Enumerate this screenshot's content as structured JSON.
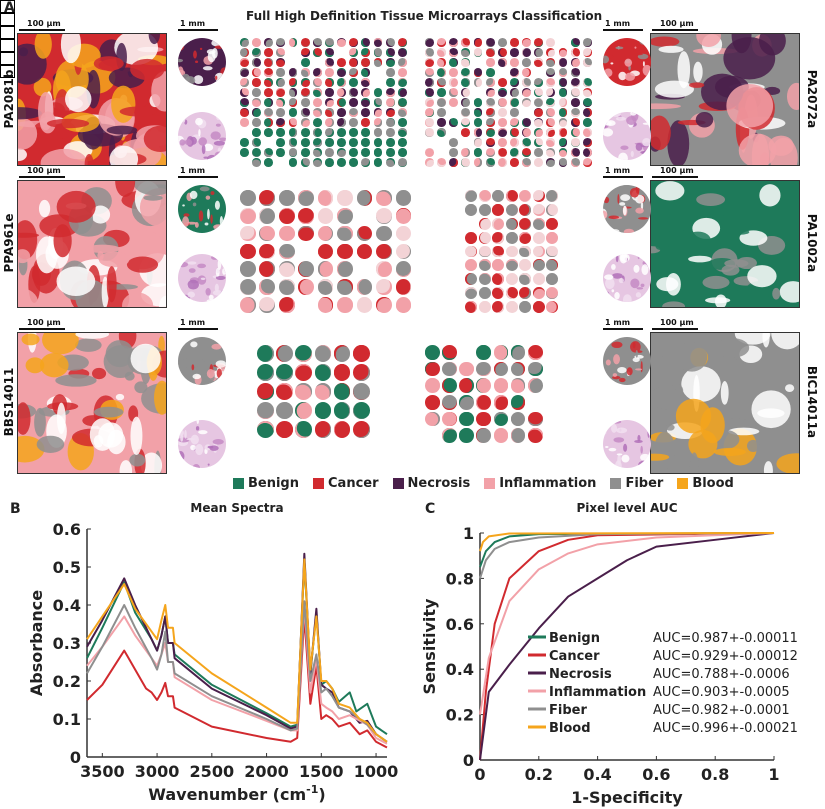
{
  "panelA": {
    "letter": "A",
    "title": "Full High Definition Tissue Microarrays Classification",
    "scale_big": "100 µm",
    "scale_small": "1 mm",
    "samples": [
      "PA2081b",
      "PA2072a",
      "PPA961e",
      "PA1002a",
      "BBS14011",
      "BIC14011a"
    ]
  },
  "legend": [
    {
      "name": "Benign",
      "color": "#1e7a5a"
    },
    {
      "name": "Cancer",
      "color": "#d12a2f"
    },
    {
      "name": "Necrosis",
      "color": "#4a1f4b"
    },
    {
      "name": "Inflammation",
      "color": "#f2a1a8"
    },
    {
      "name": "Fiber",
      "color": "#8f8f8f"
    },
    {
      "name": "Blood",
      "color": "#f5a51c"
    }
  ],
  "chart_data": [
    {
      "type": "line",
      "letter": "B",
      "title": "Mean Spectra",
      "xlabel": "Wavenumber (cm",
      "xlabel_sup": "-1",
      "xlabel_end": ")",
      "ylabel": "Absorbance",
      "xlim": [
        3640,
        900
      ],
      "ylim": [
        0,
        0.6
      ],
      "xticks": [
        3500,
        3000,
        2500,
        2000,
        1500,
        1000
      ],
      "yticks": [
        0,
        0.1,
        0.2,
        0.3,
        0.4,
        0.5,
        0.6
      ],
      "series": [
        {
          "class": "Benign",
          "points": [
            [
              3640,
              0.26
            ],
            [
              3500,
              0.34
            ],
            [
              3300,
              0.46
            ],
            [
              3200,
              0.38
            ],
            [
              3050,
              0.31
            ],
            [
              3000,
              0.28
            ],
            [
              2960,
              0.32
            ],
            [
              2925,
              0.37
            ],
            [
              2900,
              0.3
            ],
            [
              2855,
              0.3
            ],
            [
              2840,
              0.27
            ],
            [
              2500,
              0.19
            ],
            [
              2000,
              0.115
            ],
            [
              1780,
              0.08
            ],
            [
              1720,
              0.085
            ],
            [
              1655,
              0.52
            ],
            [
              1600,
              0.22
            ],
            [
              1545,
              0.38
            ],
            [
              1500,
              0.19
            ],
            [
              1455,
              0.2
            ],
            [
              1400,
              0.18
            ],
            [
              1340,
              0.145
            ],
            [
              1240,
              0.17
            ],
            [
              1180,
              0.12
            ],
            [
              1080,
              0.14
            ],
            [
              1000,
              0.08
            ],
            [
              900,
              0.06
            ]
          ]
        },
        {
          "class": "Cancer",
          "points": [
            [
              3640,
              0.15
            ],
            [
              3500,
              0.19
            ],
            [
              3300,
              0.28
            ],
            [
              3200,
              0.23
            ],
            [
              3100,
              0.18
            ],
            [
              3050,
              0.17
            ],
            [
              3000,
              0.15
            ],
            [
              2960,
              0.17
            ],
            [
              2925,
              0.195
            ],
            [
              2900,
              0.16
            ],
            [
              2855,
              0.16
            ],
            [
              2840,
              0.13
            ],
            [
              2500,
              0.08
            ],
            [
              2000,
              0.05
            ],
            [
              1780,
              0.04
            ],
            [
              1720,
              0.05
            ],
            [
              1655,
              0.37
            ],
            [
              1600,
              0.14
            ],
            [
              1545,
              0.24
            ],
            [
              1500,
              0.1
            ],
            [
              1455,
              0.11
            ],
            [
              1400,
              0.1
            ],
            [
              1340,
              0.08
            ],
            [
              1240,
              0.09
            ],
            [
              1150,
              0.06
            ],
            [
              1080,
              0.07
            ],
            [
              1000,
              0.04
            ],
            [
              900,
              0.025
            ]
          ]
        },
        {
          "class": "Necrosis",
          "points": [
            [
              3640,
              0.29
            ],
            [
              3500,
              0.36
            ],
            [
              3300,
              0.47
            ],
            [
              3200,
              0.4
            ],
            [
              3050,
              0.31
            ],
            [
              3000,
              0.28
            ],
            [
              2960,
              0.32
            ],
            [
              2925,
              0.37
            ],
            [
              2900,
              0.3
            ],
            [
              2855,
              0.3
            ],
            [
              2840,
              0.26
            ],
            [
              2500,
              0.18
            ],
            [
              2000,
              0.11
            ],
            [
              1780,
              0.075
            ],
            [
              1720,
              0.08
            ],
            [
              1655,
              0.535
            ],
            [
              1600,
              0.22
            ],
            [
              1545,
              0.39
            ],
            [
              1500,
              0.19
            ],
            [
              1455,
              0.18
            ],
            [
              1400,
              0.17
            ],
            [
              1340,
              0.13
            ],
            [
              1240,
              0.12
            ],
            [
              1150,
              0.09
            ],
            [
              1080,
              0.095
            ],
            [
              1000,
              0.06
            ],
            [
              900,
              0.04
            ]
          ]
        },
        {
          "class": "Inflammation",
          "points": [
            [
              3640,
              0.24
            ],
            [
              3500,
              0.29
            ],
            [
              3300,
              0.37
            ],
            [
              3200,
              0.32
            ],
            [
              3050,
              0.26
            ],
            [
              3000,
              0.24
            ],
            [
              2960,
              0.27
            ],
            [
              2925,
              0.3
            ],
            [
              2900,
              0.25
            ],
            [
              2855,
              0.25
            ],
            [
              2840,
              0.21
            ],
            [
              2500,
              0.15
            ],
            [
              2000,
              0.095
            ],
            [
              1780,
              0.07
            ],
            [
              1720,
              0.07
            ],
            [
              1655,
              0.4
            ],
            [
              1600,
              0.17
            ],
            [
              1545,
              0.26
            ],
            [
              1500,
              0.14
            ],
            [
              1455,
              0.13
            ],
            [
              1400,
              0.12
            ],
            [
              1340,
              0.1
            ],
            [
              1240,
              0.11
            ],
            [
              1080,
              0.085
            ],
            [
              1000,
              0.05
            ],
            [
              900,
              0.035
            ]
          ]
        },
        {
          "class": "Fiber",
          "points": [
            [
              3640,
              0.22
            ],
            [
              3500,
              0.29
            ],
            [
              3300,
              0.4
            ],
            [
              3200,
              0.34
            ],
            [
              3050,
              0.26
            ],
            [
              3000,
              0.23
            ],
            [
              2960,
              0.27
            ],
            [
              2925,
              0.33
            ],
            [
              2900,
              0.25
            ],
            [
              2855,
              0.25
            ],
            [
              2840,
              0.22
            ],
            [
              2500,
              0.16
            ],
            [
              2000,
              0.1
            ],
            [
              1780,
              0.07
            ],
            [
              1720,
              0.075
            ],
            [
              1655,
              0.41
            ],
            [
              1600,
              0.2
            ],
            [
              1545,
              0.27
            ],
            [
              1500,
              0.17
            ],
            [
              1455,
              0.18
            ],
            [
              1400,
              0.16
            ],
            [
              1340,
              0.13
            ],
            [
              1240,
              0.12
            ],
            [
              1080,
              0.085
            ],
            [
              1000,
              0.06
            ],
            [
              900,
              0.04
            ]
          ]
        },
        {
          "class": "Blood",
          "points": [
            [
              3640,
              0.31
            ],
            [
              3500,
              0.37
            ],
            [
              3300,
              0.455
            ],
            [
              3200,
              0.39
            ],
            [
              3050,
              0.33
            ],
            [
              3000,
              0.31
            ],
            [
              2960,
              0.36
            ],
            [
              2925,
              0.4
            ],
            [
              2900,
              0.34
            ],
            [
              2855,
              0.34
            ],
            [
              2840,
              0.3
            ],
            [
              2500,
              0.22
            ],
            [
              2000,
              0.13
            ],
            [
              1780,
              0.09
            ],
            [
              1720,
              0.09
            ],
            [
              1655,
              0.52
            ],
            [
              1600,
              0.23
            ],
            [
              1545,
              0.37
            ],
            [
              1500,
              0.2
            ],
            [
              1455,
              0.2
            ],
            [
              1400,
              0.18
            ],
            [
              1340,
              0.14
            ],
            [
              1240,
              0.13
            ],
            [
              1150,
              0.1
            ],
            [
              1080,
              0.09
            ],
            [
              1000,
              0.06
            ],
            [
              900,
              0.04
            ]
          ]
        }
      ]
    },
    {
      "type": "line",
      "letter": "C",
      "title": "Pixel level AUC",
      "xlabel": "1-Specificity",
      "ylabel": "Sensitivity",
      "xlim": [
        0,
        1
      ],
      "ylim": [
        0,
        1
      ],
      "xticks": [
        0,
        0.2,
        0.4,
        0.6,
        0.8,
        1
      ],
      "yticks": [
        0,
        0.2,
        0.4,
        0.6,
        0.8,
        1
      ],
      "series": [
        {
          "class": "Benign",
          "auc": "AUC=0.987+-0.00011",
          "points": [
            [
              0,
              0.85
            ],
            [
              0.02,
              0.92
            ],
            [
              0.05,
              0.96
            ],
            [
              0.1,
              0.985
            ],
            [
              0.2,
              0.995
            ],
            [
              1,
              1
            ]
          ]
        },
        {
          "class": "Cancer",
          "auc": "AUC=0.929+-0.00012",
          "points": [
            [
              0,
              0
            ],
            [
              0.02,
              0.3
            ],
            [
              0.05,
              0.6
            ],
            [
              0.1,
              0.8
            ],
            [
              0.2,
              0.92
            ],
            [
              0.3,
              0.97
            ],
            [
              0.4,
              0.99
            ],
            [
              1,
              1
            ]
          ]
        },
        {
          "class": "Necrosis",
          "auc": "AUC=0.788+-0.0006",
          "points": [
            [
              0,
              0
            ],
            [
              0.03,
              0.3
            ],
            [
              0.1,
              0.42
            ],
            [
              0.2,
              0.58
            ],
            [
              0.3,
              0.72
            ],
            [
              0.4,
              0.8
            ],
            [
              0.5,
              0.88
            ],
            [
              0.6,
              0.94
            ],
            [
              0.8,
              0.97
            ],
            [
              1,
              1
            ]
          ]
        },
        {
          "class": "Inflammation",
          "auc": "AUC=0.903+-0.0005",
          "points": [
            [
              0,
              0.2
            ],
            [
              0.03,
              0.45
            ],
            [
              0.1,
              0.7
            ],
            [
              0.2,
              0.84
            ],
            [
              0.3,
              0.91
            ],
            [
              0.4,
              0.95
            ],
            [
              0.6,
              0.98
            ],
            [
              1,
              1
            ]
          ]
        },
        {
          "class": "Fiber",
          "auc": "AUC=0.982+-0.0001",
          "points": [
            [
              0,
              0.8
            ],
            [
              0.02,
              0.88
            ],
            [
              0.05,
              0.93
            ],
            [
              0.1,
              0.96
            ],
            [
              0.2,
              0.98
            ],
            [
              0.4,
              0.995
            ],
            [
              1,
              1
            ]
          ]
        },
        {
          "class": "Blood",
          "auc": "AUC=0.996+-0.00021",
          "points": [
            [
              0,
              0.92
            ],
            [
              0.01,
              0.96
            ],
            [
              0.03,
              0.985
            ],
            [
              0.1,
              0.998
            ],
            [
              1,
              1
            ]
          ]
        }
      ]
    }
  ]
}
